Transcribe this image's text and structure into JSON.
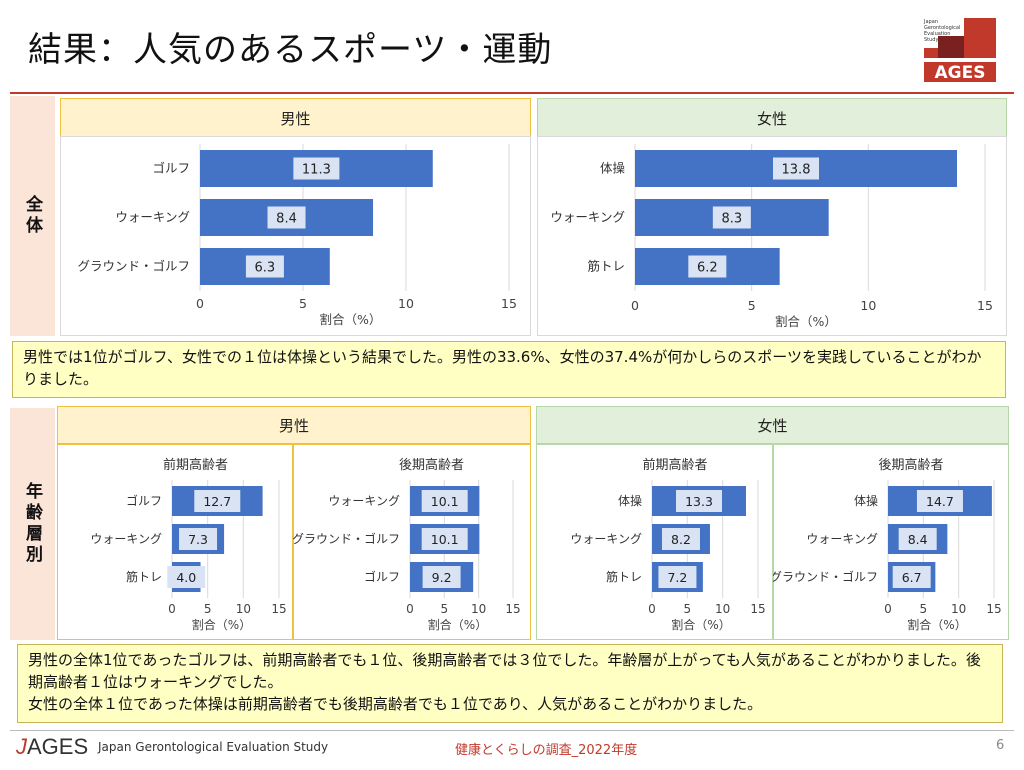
{
  "page": {
    "title": "結果：人気のあるスポーツ・運動",
    "logo_small_text": "Japan Gerontological Evaluation Study",
    "logo_brand": "AGES",
    "footer_logo_j": "J",
    "footer_logo_rest": "AGES",
    "footer_subtitle": "Japan Gerontological Evaluation Study",
    "footer_center": "健康とくらしの調査_2022年度",
    "page_number": "6"
  },
  "sections": {
    "overall_label": "全体",
    "age_label": "年齢層別",
    "male_header": "男性",
    "female_header": "女性",
    "male_header_2": "男性",
    "female_header_2": "女性"
  },
  "notes": {
    "overall": "男性では1位がゴルフ、女性での１位は体操という結果でした。男性の33.6%、女性の37.4%が何かしらのスポーツを実践していることがわかりました。",
    "age_line1": "男性の全体1位であったゴルフは、前期高齢者でも１位、後期高齢者では３位でした。年齢層が上がっても人気があることがわかりました。後期高齢者１位はウォーキングでした。",
    "age_line2": "女性の全体１位であった体操は前期高齢者でも後期高齢者でも１位であり、人気があることがわかりました。"
  },
  "colors": {
    "bar": "#4472c4",
    "label_box": "#dae3f3",
    "male_header_bg": "#fff2cc",
    "female_header_bg": "#e2efda",
    "accent_red": "#c0392b"
  },
  "chart_data": [
    {
      "id": "overall-male",
      "type": "bar",
      "orientation": "horizontal",
      "categories": [
        "ゴルフ",
        "ウォーキング",
        "グラウンド・ゴルフ"
      ],
      "values": [
        11.3,
        8.4,
        6.3
      ],
      "labels": [
        "11.3",
        "8.4",
        "6.3"
      ],
      "xlim": [
        0,
        15
      ],
      "ticks": [
        "0",
        "5",
        "10",
        "15"
      ],
      "xlabel": "割合（%）",
      "title": ""
    },
    {
      "id": "overall-female",
      "type": "bar",
      "orientation": "horizontal",
      "categories": [
        "体操",
        "ウォーキング",
        "筋トレ"
      ],
      "values": [
        13.8,
        8.3,
        6.2
      ],
      "labels": [
        "13.8",
        "8.3",
        "6.2"
      ],
      "xlim": [
        0,
        15
      ],
      "ticks": [
        "0",
        "5",
        "10",
        "15"
      ],
      "xlabel": "割合（%）",
      "title": ""
    },
    {
      "id": "male-early",
      "type": "bar",
      "orientation": "horizontal",
      "title": "前期高齢者",
      "categories": [
        "ゴルフ",
        "ウォーキング",
        "筋トレ"
      ],
      "values": [
        12.7,
        7.3,
        4.0
      ],
      "labels": [
        "12.7",
        "7.3",
        "4.0"
      ],
      "xlim": [
        0,
        15
      ],
      "ticks": [
        "0",
        "5",
        "10",
        "15"
      ],
      "xlabel": "割合（%）"
    },
    {
      "id": "male-late",
      "type": "bar",
      "orientation": "horizontal",
      "title": "後期高齢者",
      "categories": [
        "ウォーキング",
        "グラウンド・ゴルフ",
        "ゴルフ"
      ],
      "values": [
        10.1,
        10.1,
        9.2
      ],
      "labels": [
        "10.1",
        "10.1",
        "9.2"
      ],
      "xlim": [
        0,
        15
      ],
      "ticks": [
        "0",
        "5",
        "10",
        "15"
      ],
      "xlabel": "割合（%）"
    },
    {
      "id": "female-early",
      "type": "bar",
      "orientation": "horizontal",
      "title": "前期高齢者",
      "categories": [
        "体操",
        "ウォーキング",
        "筋トレ"
      ],
      "values": [
        13.3,
        8.2,
        7.2
      ],
      "labels": [
        "13.3",
        "8.2",
        "7.2"
      ],
      "xlim": [
        0,
        15
      ],
      "ticks": [
        "0",
        "5",
        "10",
        "15"
      ],
      "xlabel": "割合（%）"
    },
    {
      "id": "female-late",
      "type": "bar",
      "orientation": "horizontal",
      "title": "後期高齢者",
      "categories": [
        "体操",
        "ウォーキング",
        "グラウンド・ゴルフ"
      ],
      "values": [
        14.7,
        8.4,
        6.7
      ],
      "labels": [
        "14.7",
        "8.4",
        "6.7"
      ],
      "xlim": [
        0,
        15
      ],
      "ticks": [
        "0",
        "5",
        "10",
        "15"
      ],
      "xlabel": "割合（%）"
    }
  ]
}
